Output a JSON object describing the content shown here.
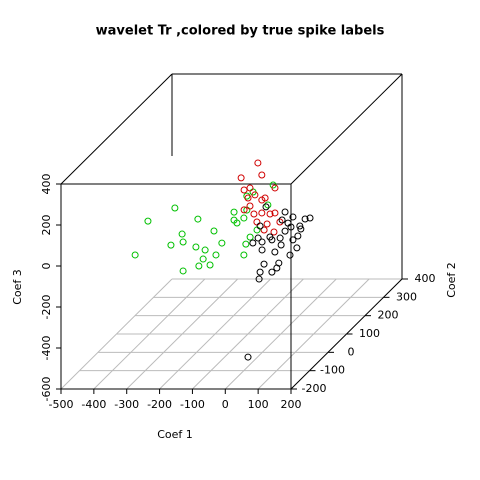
{
  "chart_data": {
    "type": "scatter3d",
    "title": "wavelet Tr ,colored by true spike labels",
    "xlabel": "Coef 1",
    "ylabel": "Coef 2",
    "zlabel": "Coef 3",
    "xlim": [
      -500,
      200
    ],
    "ylim": [
      -200,
      400
    ],
    "zlim": [
      -600,
      400
    ],
    "xticks": [
      -500,
      -400,
      -300,
      -200,
      -100,
      0,
      100,
      200
    ],
    "yticks": [
      -200,
      -100,
      0,
      100,
      200,
      300,
      400
    ],
    "zticks": [
      -600,
      -400,
      -200,
      0,
      200,
      400
    ],
    "grid": true,
    "series": [
      {
        "color": "#00c000",
        "x": [
          -348,
          -266,
          -196,
          -387,
          -278,
          -241,
          -244,
          -202,
          -174,
          -180,
          -193,
          -241,
          -159,
          -141,
          -147,
          -123,
          -56,
          -50,
          -37,
          -16,
          -86,
          -86,
          -47,
          -56,
          -47,
          -28,
          17,
          33,
          -77
        ],
        "y": [
          0,
          0,
          0,
          0,
          0,
          0,
          0,
          0,
          0,
          0,
          0,
          0,
          0,
          0,
          0,
          0,
          0,
          0,
          0,
          0,
          0,
          0,
          0,
          0,
          0,
          0,
          0,
          0,
          0
        ],
        "z": [
          40,
          104,
          50,
          -125,
          -77,
          -62,
          -23,
          -86,
          -101,
          -145,
          -179,
          -203,
          -174,
          -125,
          -8,
          -67,
          -125,
          -72,
          -38,
          -3,
          84,
          45,
          94,
          55,
          162,
          182,
          119,
          216,
          31
        ]
      },
      {
        "color": "#d00000",
        "x": [
          -177,
          -126,
          -114,
          -150,
          -168,
          -135,
          -114,
          -74,
          -150,
          -168,
          -114,
          -138,
          -89,
          -74,
          -129,
          -98,
          -107,
          -77,
          -59,
          -104,
          -156
        ],
        "y": [
          200,
          200,
          200,
          200,
          200,
          200,
          200,
          200,
          200,
          200,
          200,
          200,
          200,
          200,
          200,
          200,
          200,
          200,
          200,
          200,
          200
        ],
        "z": [
          72,
          145,
          86,
          23,
          13,
          -11,
          -36,
          23,
          -65,
          -84,
          -99,
          -104,
          -104,
          -99,
          -143,
          -153,
          -182,
          -192,
          -143,
          -26,
          -26
        ]
      },
      {
        "color": "#000000",
        "x": [
          41,
          -69,
          -57,
          -85,
          -33,
          22,
          74,
          89,
          58,
          13,
          52,
          37,
          1,
          49,
          28,
          -6,
          -27,
          -63,
          -66,
          -12,
          -51,
          -45,
          13,
          37,
          -63,
          4,
          61,
          -2,
          31,
          -18,
          -57,
          -27
        ],
        "y": [
          -150,
          100,
          100,
          100,
          100,
          100,
          100,
          100,
          100,
          100,
          100,
          100,
          100,
          100,
          100,
          100,
          100,
          100,
          100,
          100,
          100,
          100,
          100,
          100,
          100,
          100,
          100,
          100,
          100,
          100,
          100,
          100
        ],
        "z": [
          -489,
          -132,
          -151,
          -156,
          -127,
          -59,
          -39,
          -34,
          -73,
          -98,
          -122,
          -141,
          -166,
          -180,
          -215,
          -254,
          -298,
          -298,
          -332,
          -278,
          -259,
          20,
          -5,
          -29,
          -73,
          -44,
          -88,
          -132,
          -78,
          -200,
          -190,
          -141
        ]
      }
    ]
  }
}
